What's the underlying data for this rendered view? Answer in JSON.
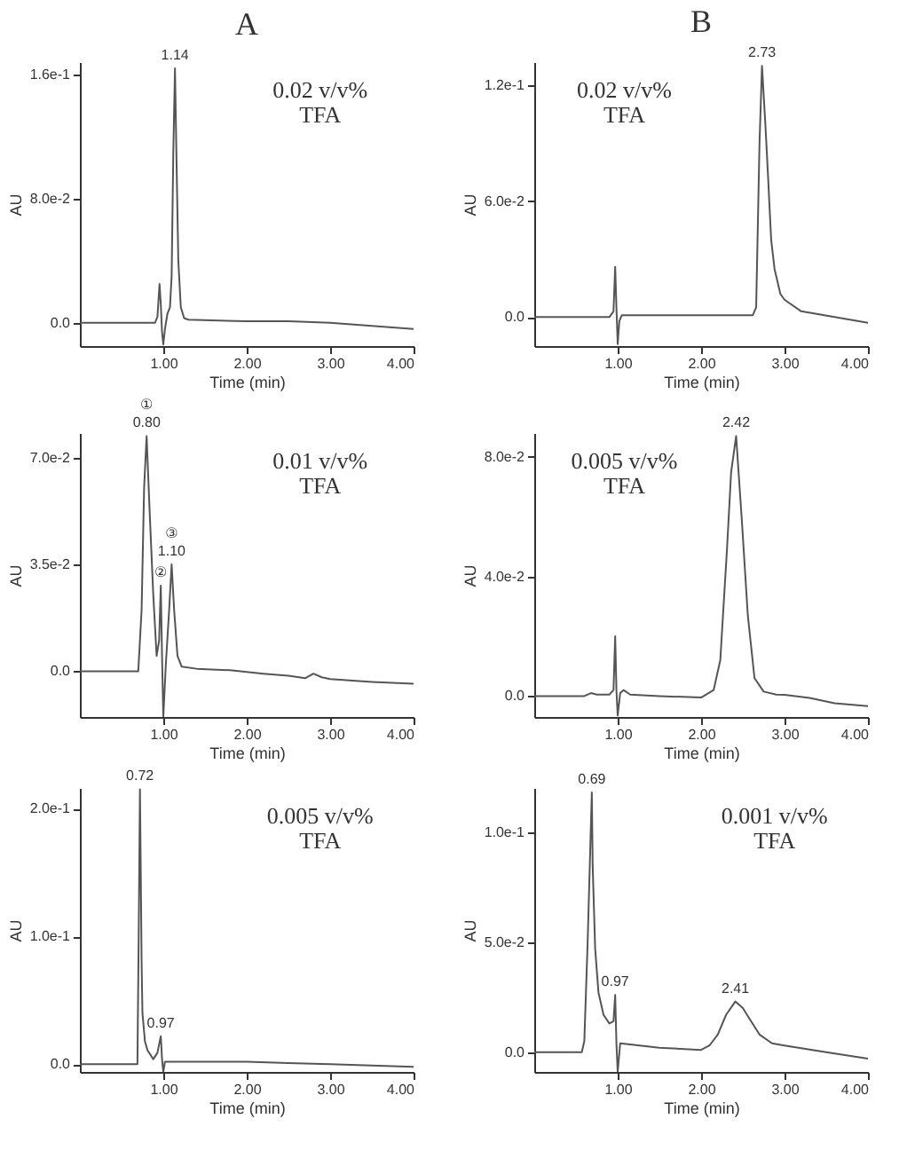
{
  "chart_data": [
    {
      "type": "line",
      "title": "A",
      "xlabel": "Time (min)",
      "ylabel": "AU",
      "color": "#555555",
      "xlim": [
        0,
        4
      ],
      "ylim": [
        -0.015,
        0.168
      ],
      "xticks": [
        {
          "value": 1,
          "label": "1.00"
        },
        {
          "value": 2,
          "label": "2.00"
        },
        {
          "value": 3,
          "label": "3.00"
        },
        {
          "value": 4,
          "label": "4.00"
        }
      ],
      "yticks": [
        {
          "value": 0,
          "label": "0.0"
        },
        {
          "value": 0.08,
          "label": "8.0e-2"
        },
        {
          "value": 0.16,
          "label": "1.6e-1"
        }
      ],
      "x": [
        0,
        0.5,
        0.9,
        0.93,
        0.955,
        0.97,
        0.985,
        1.0,
        1.02,
        1.05,
        1.08,
        1.1,
        1.12,
        1.14,
        1.16,
        1.18,
        1.21,
        1.25,
        1.3,
        2.0,
        2.5,
        3.0,
        3.5,
        4.0
      ],
      "values": [
        0,
        0,
        0,
        0.004,
        0.025,
        0.012,
        -0.006,
        -0.014,
        -0.004,
        0.006,
        0.01,
        0.03,
        0.11,
        0.164,
        0.1,
        0.04,
        0.01,
        0.003,
        0.002,
        0.001,
        0.001,
        0,
        -0.002,
        -0.004
      ],
      "annotations": [
        {
          "text": "1.14",
          "x": 1.14,
          "y": 0.164
        },
        "0.02 v/v%",
        "TFA"
      ]
    },
    {
      "type": "line",
      "title": "B",
      "xlabel": "Time (min)",
      "ylabel": "AU",
      "color": "#555555",
      "xlim": [
        0,
        4
      ],
      "ylim": [
        -0.015,
        0.132
      ],
      "xticks": [
        {
          "value": 1,
          "label": "1.00"
        },
        {
          "value": 2,
          "label": "2.00"
        },
        {
          "value": 3,
          "label": "3.00"
        },
        {
          "value": 4,
          "label": "4.00"
        }
      ],
      "yticks": [
        {
          "value": 0,
          "label": "0.0"
        },
        {
          "value": 0.06,
          "label": "6.0e-2"
        },
        {
          "value": 0.12,
          "label": "1.2e-1"
        }
      ],
      "x": [
        0,
        0.5,
        0.9,
        0.95,
        0.97,
        0.985,
        1.0,
        1.02,
        1.05,
        1.5,
        2.0,
        2.4,
        2.62,
        2.66,
        2.7,
        2.73,
        2.77,
        2.8,
        2.84,
        2.88,
        2.95,
        3.0,
        3.2,
        3.6,
        4.0
      ],
      "values": [
        0,
        0,
        0,
        0.003,
        0.026,
        0.005,
        -0.014,
        -0.002,
        0.001,
        0.001,
        0.001,
        0.001,
        0.001,
        0.005,
        0.09,
        0.13,
        0.1,
        0.075,
        0.04,
        0.025,
        0.012,
        0.009,
        0.003,
        0,
        -0.003
      ],
      "annotations": [
        {
          "text": "2.73",
          "x": 2.73,
          "y": 0.13
        },
        "0.02 v/v%",
        "TFA"
      ]
    },
    {
      "type": "line",
      "xlabel": "Time (min)",
      "ylabel": "AU",
      "color": "#555555",
      "xlim": [
        0,
        4
      ],
      "ylim": [
        -0.015,
        0.078
      ],
      "xticks": [
        {
          "value": 1,
          "label": "1.00"
        },
        {
          "value": 2,
          "label": "2.00"
        },
        {
          "value": 3,
          "label": "3.00"
        },
        {
          "value": 4,
          "label": "4.00"
        }
      ],
      "yticks": [
        {
          "value": 0,
          "label": "0.0"
        },
        {
          "value": 0.035,
          "label": "3.5e-2"
        },
        {
          "value": 0.07,
          "label": "7.0e-2"
        }
      ],
      "x": [
        0,
        0.5,
        0.7,
        0.74,
        0.77,
        0.8,
        0.84,
        0.88,
        0.92,
        0.95,
        0.97,
        0.985,
        1.0,
        1.03,
        1.07,
        1.1,
        1.13,
        1.17,
        1.22,
        1.4,
        1.8,
        2.2,
        2.5,
        2.7,
        2.8,
        2.9,
        3.0,
        3.5,
        4.0
      ],
      "values": [
        0,
        0,
        0,
        0.02,
        0.06,
        0.077,
        0.05,
        0.025,
        0.005,
        0.01,
        0.028,
        0.005,
        -0.015,
        0.002,
        0.02,
        0.035,
        0.02,
        0.005,
        0.0015,
        0.0008,
        0.0003,
        -0.0008,
        -0.0015,
        -0.0023,
        -0.0008,
        -0.002,
        -0.0026,
        -0.0035,
        -0.0041
      ],
      "annotations": [
        {
          "text": "0.80",
          "x": 0.8,
          "y": 0.077
        },
        {
          "text": "①",
          "x": 0.8,
          "y": 0.077
        },
        {
          "text": "②",
          "x": 0.97,
          "y": 0.028
        },
        {
          "text": "1.10",
          "x": 1.1,
          "y": 0.035
        },
        {
          "text": "③",
          "x": 1.1,
          "y": 0.035
        },
        "0.01 v/v%",
        "TFA"
      ]
    },
    {
      "type": "line",
      "xlabel": "Time (min)",
      "ylabel": "AU",
      "color": "#555555",
      "xlim": [
        0,
        4
      ],
      "ylim": [
        -0.007,
        0.088
      ],
      "xticks": [
        {
          "value": 1,
          "label": "1.00"
        },
        {
          "value": 2,
          "label": "2.00"
        },
        {
          "value": 3,
          "label": "3.00"
        },
        {
          "value": 4,
          "label": "4.00"
        }
      ],
      "yticks": [
        {
          "value": 0,
          "label": "0.0"
        },
        {
          "value": 0.04,
          "label": "4.0e-2"
        },
        {
          "value": 0.08,
          "label": "8.0e-2"
        }
      ],
      "x": [
        0,
        0.6,
        0.68,
        0.75,
        0.9,
        0.95,
        0.97,
        0.985,
        1.0,
        1.03,
        1.07,
        1.15,
        1.5,
        2.0,
        2.15,
        2.23,
        2.31,
        2.36,
        2.42,
        2.49,
        2.56,
        2.64,
        2.75,
        2.9,
        3.0,
        3.3,
        3.6,
        4.0
      ],
      "values": [
        0,
        0,
        0.001,
        0.0005,
        0.0005,
        0.002,
        0.02,
        0.002,
        -0.0065,
        0.001,
        0.002,
        0.0005,
        0,
        -0.0005,
        0.002,
        0.012,
        0.049,
        0.075,
        0.087,
        0.058,
        0.027,
        0.006,
        0.0015,
        0.0005,
        0.0004,
        -0.0006,
        -0.0024,
        -0.0034
      ],
      "annotations": [
        {
          "text": "2.42",
          "x": 2.42,
          "y": 0.087
        },
        "0.005 v/v%",
        "TFA"
      ]
    },
    {
      "type": "line",
      "xlabel": "Time (min)",
      "ylabel": "AU",
      "color": "#555555",
      "xlim": [
        0,
        4
      ],
      "ylim": [
        -0.006,
        0.216
      ],
      "xticks": [
        {
          "value": 1,
          "label": "1.00"
        },
        {
          "value": 2,
          "label": "2.00"
        },
        {
          "value": 3,
          "label": "3.00"
        },
        {
          "value": 4,
          "label": "4.00"
        }
      ],
      "yticks": [
        {
          "value": 0,
          "label": "0.0"
        },
        {
          "value": 0.1,
          "label": "1.0e-1"
        },
        {
          "value": 0.2,
          "label": "2.0e-1"
        }
      ],
      "x": [
        0,
        0.5,
        0.69,
        0.705,
        0.72,
        0.73,
        0.74,
        0.75,
        0.78,
        0.81,
        0.88,
        0.93,
        0.97,
        0.985,
        1.0,
        1.02,
        1.5,
        2.0,
        2.5,
        3.0,
        3.5,
        4.0
      ],
      "values": [
        0,
        0,
        0,
        0.1,
        0.215,
        0.15,
        0.08,
        0.04,
        0.018,
        0.011,
        0.004,
        0.009,
        0.022,
        0.004,
        -0.006,
        0.002,
        0.002,
        0.002,
        0.001,
        0,
        -0.001,
        -0.002
      ],
      "annotations": [
        {
          "text": "0.72",
          "x": 0.72,
          "y": 0.215
        },
        {
          "text": "0.97",
          "x": 0.97,
          "y": 0.022
        },
        "0.005 v/v%",
        "TFA"
      ]
    },
    {
      "type": "line",
      "xlabel": "Time (min)",
      "ylabel": "AU",
      "color": "#555555",
      "xlim": [
        0,
        4
      ],
      "ylim": [
        -0.009,
        0.12
      ],
      "xticks": [
        {
          "value": 1,
          "label": "1.00"
        },
        {
          "value": 2,
          "label": "2.00"
        },
        {
          "value": 3,
          "label": "3.00"
        },
        {
          "value": 4,
          "label": "4.00"
        }
      ],
      "yticks": [
        {
          "value": 0,
          "label": "0.0"
        },
        {
          "value": 0.05,
          "label": "5.0e-2"
        },
        {
          "value": 0.1,
          "label": "1.0e-1"
        }
      ],
      "x": [
        0,
        0.5,
        0.57,
        0.6,
        0.64,
        0.69,
        0.7,
        0.73,
        0.77,
        0.83,
        0.9,
        0.95,
        0.97,
        0.985,
        1.0,
        1.03,
        1.5,
        2.0,
        2.1,
        2.2,
        2.3,
        2.41,
        2.5,
        2.6,
        2.7,
        2.85,
        3.0,
        3.5,
        4.0
      ],
      "values": [
        0,
        0,
        0,
        0.005,
        0.05,
        0.118,
        0.085,
        0.047,
        0.027,
        0.017,
        0.013,
        0.014,
        0.026,
        0.004,
        -0.009,
        0.004,
        0.002,
        0.001,
        0.003,
        0.008,
        0.017,
        0.023,
        0.02,
        0.014,
        0.008,
        0.004,
        0.003,
        0,
        -0.003
      ],
      "annotations": [
        {
          "text": "0.69",
          "x": 0.69,
          "y": 0.118
        },
        {
          "text": "0.97",
          "x": 0.97,
          "y": 0.026
        },
        {
          "text": "2.41",
          "x": 2.41,
          "y": 0.023
        },
        "0.001 v/v%",
        "TFA"
      ]
    }
  ]
}
